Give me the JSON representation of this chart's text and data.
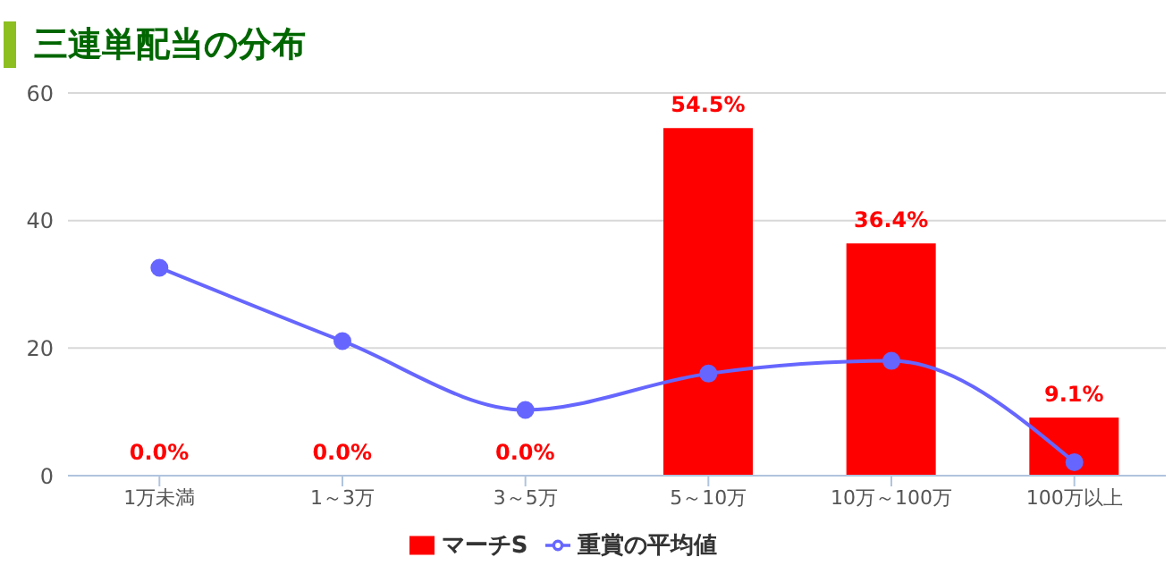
{
  "chart_data": {
    "type": "bar",
    "title": "三連単配当の分布",
    "categories": [
      "1万未満",
      "1～3万",
      "3～5万",
      "5～10万",
      "10万～100万",
      "100万以上"
    ],
    "series": [
      {
        "name": "重賞の平均値",
        "type": "line",
        "color": "#6666ff",
        "values": [
          32.6,
          21.1,
          10.3,
          16.0,
          18.0,
          2.1
        ],
        "marker": "circle"
      },
      {
        "name": "マーチS",
        "color": "#ff0000",
        "values": [
          0,
          0,
          0,
          54.5,
          36.4,
          9.1
        ],
        "value_labels": [
          "0.0%",
          "0.0%",
          "0.0%",
          "54.5%",
          "36.4%",
          "9.1%"
        ]
      }
    ],
    "ylim": [
      0,
      60
    ],
    "yticks": [
      0,
      20,
      40,
      60
    ],
    "grid": "y",
    "legend": "bottom"
  }
}
